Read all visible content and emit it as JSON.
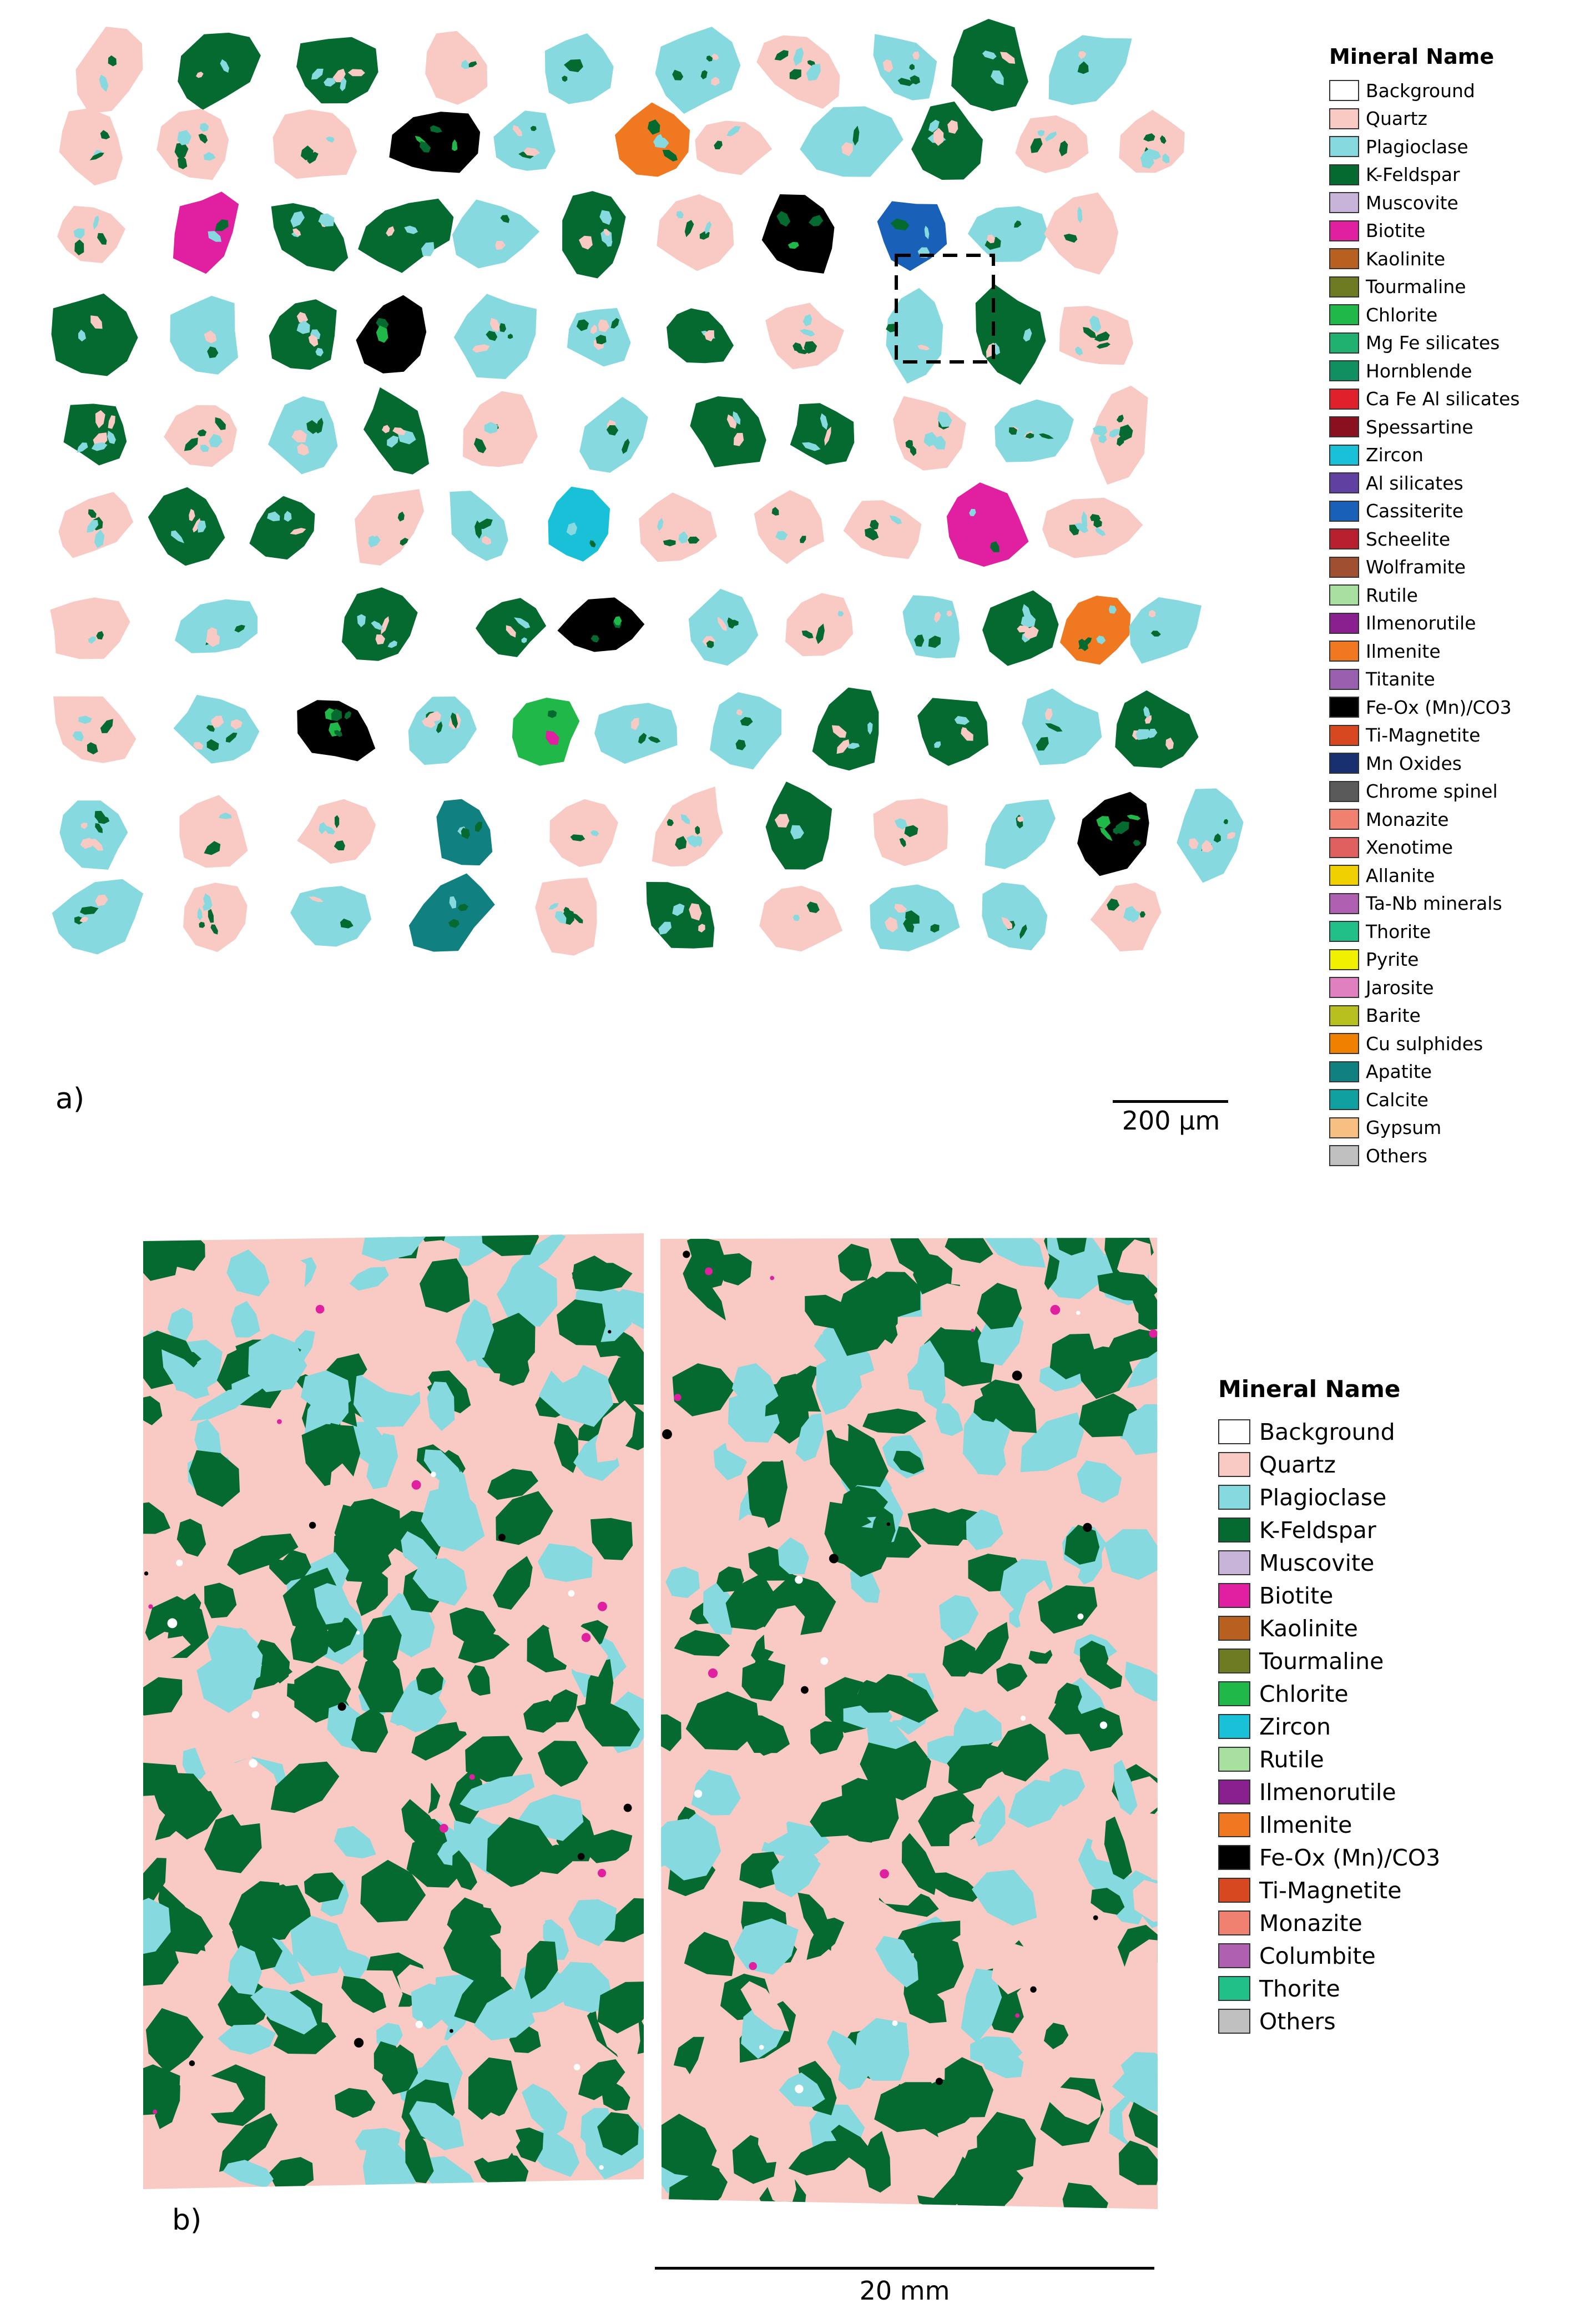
{
  "panel_a": {
    "label": "a)",
    "scale_bar": "200 µm",
    "legend_title": "Mineral Name",
    "legend": [
      {
        "name": "Background",
        "color": "#ffffff"
      },
      {
        "name": "Quartz",
        "color": "#f9c9c4"
      },
      {
        "name": "Plagioclase",
        "color": "#86d9df"
      },
      {
        "name": "K-Feldspar",
        "color": "#046a30"
      },
      {
        "name": "Muscovite",
        "color": "#c8b4d8"
      },
      {
        "name": "Biotite",
        "color": "#e020a0"
      },
      {
        "name": "Kaolinite",
        "color": "#b86020"
      },
      {
        "name": "Tourmaline",
        "color": "#6f7b23"
      },
      {
        "name": "Chlorite",
        "color": "#20b848"
      },
      {
        "name": "Mg Fe silicates",
        "color": "#20b070"
      },
      {
        "name": "Hornblende",
        "color": "#109060"
      },
      {
        "name": "Ca Fe Al silicates",
        "color": "#e0202a"
      },
      {
        "name": "Spessartine",
        "color": "#8a1020"
      },
      {
        "name": "Zircon",
        "color": "#18c0d8"
      },
      {
        "name": "Al silicates",
        "color": "#6040a0"
      },
      {
        "name": "Cassiterite",
        "color": "#1860b8"
      },
      {
        "name": "Scheelite",
        "color": "#b82030"
      },
      {
        "name": "Wolframite",
        "color": "#a05030"
      },
      {
        "name": "Rutile",
        "color": "#a8e0a0"
      },
      {
        "name": "Ilmenorutile",
        "color": "#8a2090"
      },
      {
        "name": "Ilmenite",
        "color": "#f07820"
      },
      {
        "name": "Titanite",
        "color": "#9a60b0"
      },
      {
        "name": "Fe-Ox (Mn)/CO3",
        "color": "#000000"
      },
      {
        "name": "Ti-Magnetite",
        "color": "#d84820"
      },
      {
        "name": "Mn Oxides",
        "color": "#183070"
      },
      {
        "name": "Chrome spinel",
        "color": "#5a5a5a"
      },
      {
        "name": "Monazite",
        "color": "#f08070"
      },
      {
        "name": "Xenotime",
        "color": "#e06060"
      },
      {
        "name": "Allanite",
        "color": "#f0d000"
      },
      {
        "name": "Ta-Nb minerals",
        "color": "#b060b0"
      },
      {
        "name": "Thorite",
        "color": "#20c088"
      },
      {
        "name": "Pyrite",
        "color": "#f0f000"
      },
      {
        "name": "Jarosite",
        "color": "#e080c0"
      },
      {
        "name": "Barite",
        "color": "#b8c020"
      },
      {
        "name": "Cu sulphides",
        "color": "#f08000"
      },
      {
        "name": "Apatite",
        "color": "#108080"
      },
      {
        "name": "Calcite",
        "color": "#10a0a0"
      },
      {
        "name": "Gypsum",
        "color": "#f8c080"
      },
      {
        "name": "Others",
        "color": "#c0c0c0"
      }
    ]
  },
  "panel_b": {
    "label": "b)",
    "scale_bar": "20 mm",
    "legend_title": "Mineral Name",
    "legend": [
      {
        "name": "Background",
        "color": "#ffffff"
      },
      {
        "name": "Quartz",
        "color": "#f9c9c4"
      },
      {
        "name": "Plagioclase",
        "color": "#86d9df"
      },
      {
        "name": "K-Feldspar",
        "color": "#046a30"
      },
      {
        "name": "Muscovite",
        "color": "#c8b4d8"
      },
      {
        "name": "Biotite",
        "color": "#e020a0"
      },
      {
        "name": "Kaolinite",
        "color": "#b86020"
      },
      {
        "name": "Tourmaline",
        "color": "#6f7b23"
      },
      {
        "name": "Chlorite",
        "color": "#20b848"
      },
      {
        "name": "Zircon",
        "color": "#18c0d8"
      },
      {
        "name": "Rutile",
        "color": "#a8e0a0"
      },
      {
        "name": "Ilmenorutile",
        "color": "#8a2090"
      },
      {
        "name": "Ilmenite",
        "color": "#f07820"
      },
      {
        "name": "Fe-Ox (Mn)/CO3",
        "color": "#000000"
      },
      {
        "name": "Ti-Magnetite",
        "color": "#d84820"
      },
      {
        "name": "Monazite",
        "color": "#f08070"
      },
      {
        "name": "Columbite",
        "color": "#b060b0"
      },
      {
        "name": "Thorite",
        "color": "#20c088"
      },
      {
        "name": "Others",
        "color": "#c0c0c0"
      }
    ]
  }
}
